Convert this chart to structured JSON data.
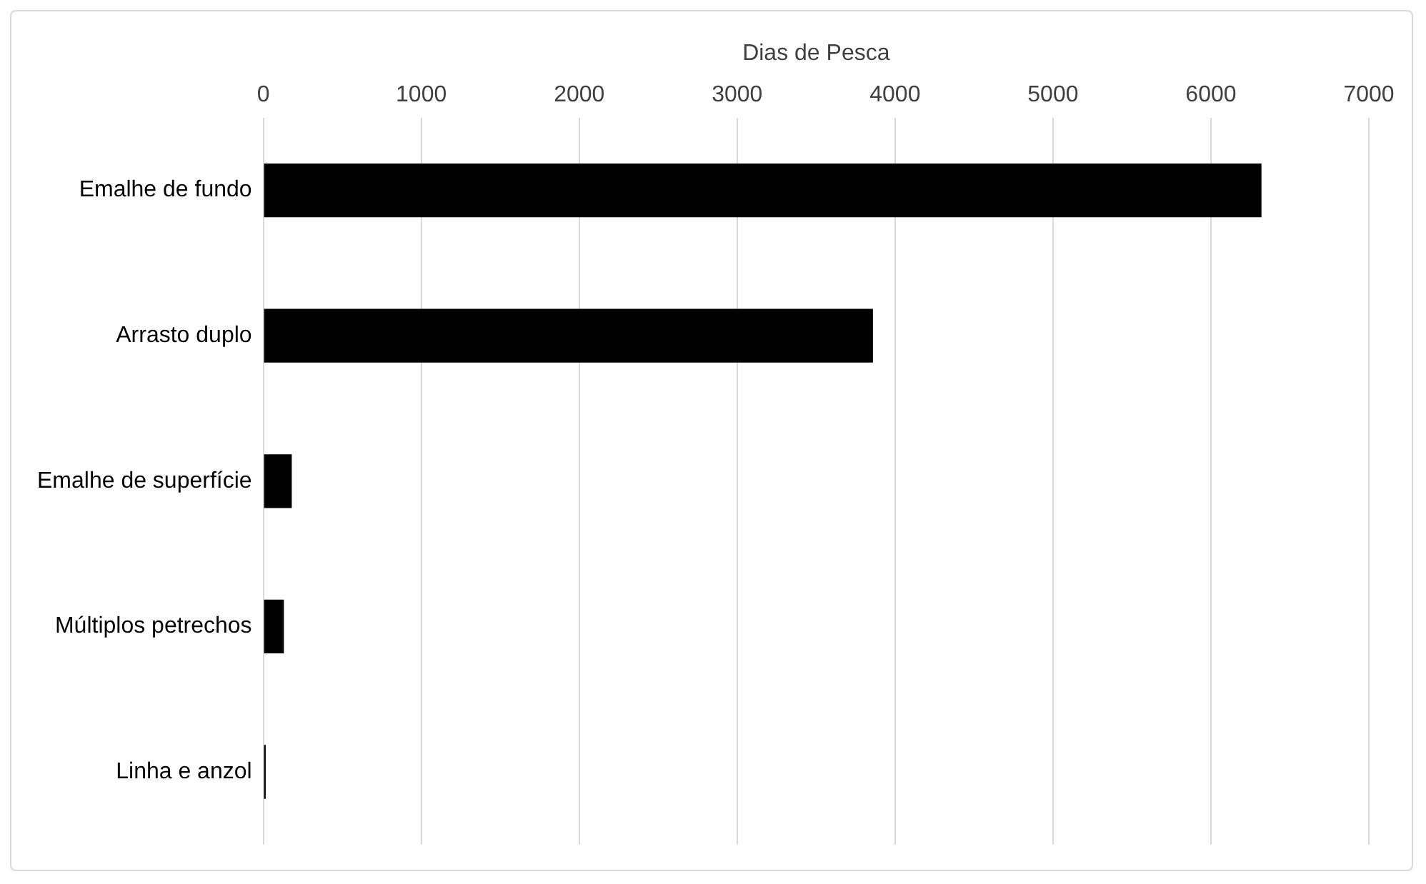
{
  "chart_data": {
    "type": "bar",
    "orientation": "horizontal",
    "xlabel": "Dias de Pesca",
    "categories": [
      "Emalhe de fundo",
      "Arrasto duplo",
      "Emalhe de superfície",
      "Múltiplos petrechos",
      "Linha e anzol"
    ],
    "values": [
      6320,
      3860,
      180,
      130,
      15
    ],
    "color": "#000000",
    "xlim": [
      0,
      7000
    ],
    "xticks": [
      0,
      1000,
      2000,
      3000,
      4000,
      5000,
      6000,
      7000
    ],
    "grid": "x",
    "legend": false
  }
}
